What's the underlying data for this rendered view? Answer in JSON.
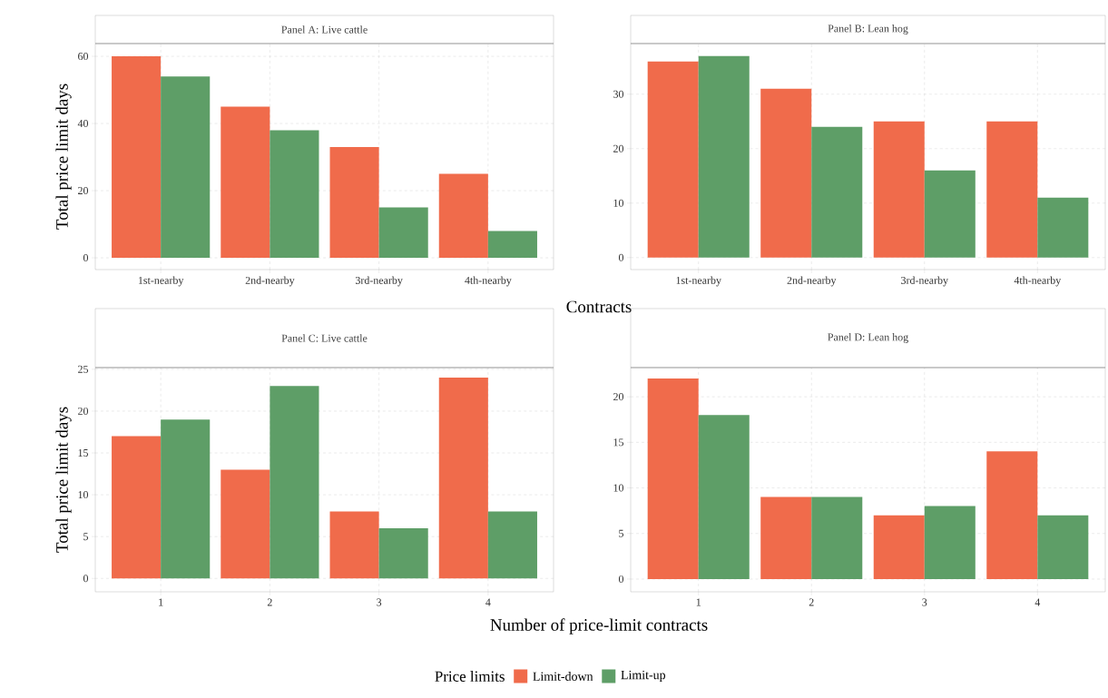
{
  "chart_data": [
    {
      "type": "bar",
      "title": "Panel A: Live cattle",
      "xlabel": "Contracts",
      "ylabel": "Total price limit days",
      "categories": [
        "1st-nearby",
        "2nd-nearby",
        "3rd-nearby",
        "4th-nearby"
      ],
      "series": [
        {
          "name": "Limit-down",
          "color": "#f06b4b",
          "values": [
            60,
            45,
            33,
            25
          ]
        },
        {
          "name": "Limit-up",
          "color": "#5e9e67",
          "values": [
            54,
            38,
            15,
            8
          ]
        }
      ],
      "ylim": [
        -3.5,
        63.8
      ],
      "yticks": [
        0,
        20,
        40,
        60
      ],
      "grid": true,
      "legend": "bottom",
      "legend_title": "Price limits"
    },
    {
      "type": "bar",
      "title": "Panel B: Lean hog",
      "categories": [
        "1st-nearby",
        "2nd-nearby",
        "3rd-nearby",
        "4th-nearby"
      ],
      "series": [
        {
          "color": "#f06b4b",
          "values": [
            36,
            31,
            25,
            25
          ]
        },
        {
          "color": "#5e9e67",
          "values": [
            37,
            24,
            16,
            11
          ]
        }
      ],
      "ylim": [
        -2.2,
        39.3
      ],
      "yticks": [
        0,
        10,
        20,
        30
      ],
      "grid": true
    },
    {
      "type": "bar",
      "title": "Panel C: Live cattle",
      "xlabel": "Number of price-limit contracts",
      "ylabel": "Total price limit days",
      "categories": [
        "1",
        "2",
        "3",
        "4"
      ],
      "series": [
        {
          "color": "#f06b4b",
          "values": [
            17,
            13,
            8,
            24
          ]
        },
        {
          "color": "#5e9e67",
          "values": [
            19,
            23,
            6,
            8
          ]
        }
      ],
      "ylim": [
        -1.6,
        25.2
      ],
      "yticks": [
        0,
        5,
        10,
        15,
        20,
        25
      ],
      "grid": true
    },
    {
      "type": "bar",
      "title": "Panel D: Lean hog",
      "categories": [
        "1",
        "2",
        "3",
        "4"
      ],
      "series": [
        {
          "color": "#f06b4b",
          "values": [
            22,
            9,
            7,
            14
          ]
        },
        {
          "color": "#5e9e67",
          "values": [
            18,
            9,
            8,
            7
          ]
        }
      ],
      "ylim": [
        -1.4,
        23.2
      ],
      "yticks": [
        0,
        5,
        10,
        15,
        20
      ],
      "grid": true
    }
  ]
}
